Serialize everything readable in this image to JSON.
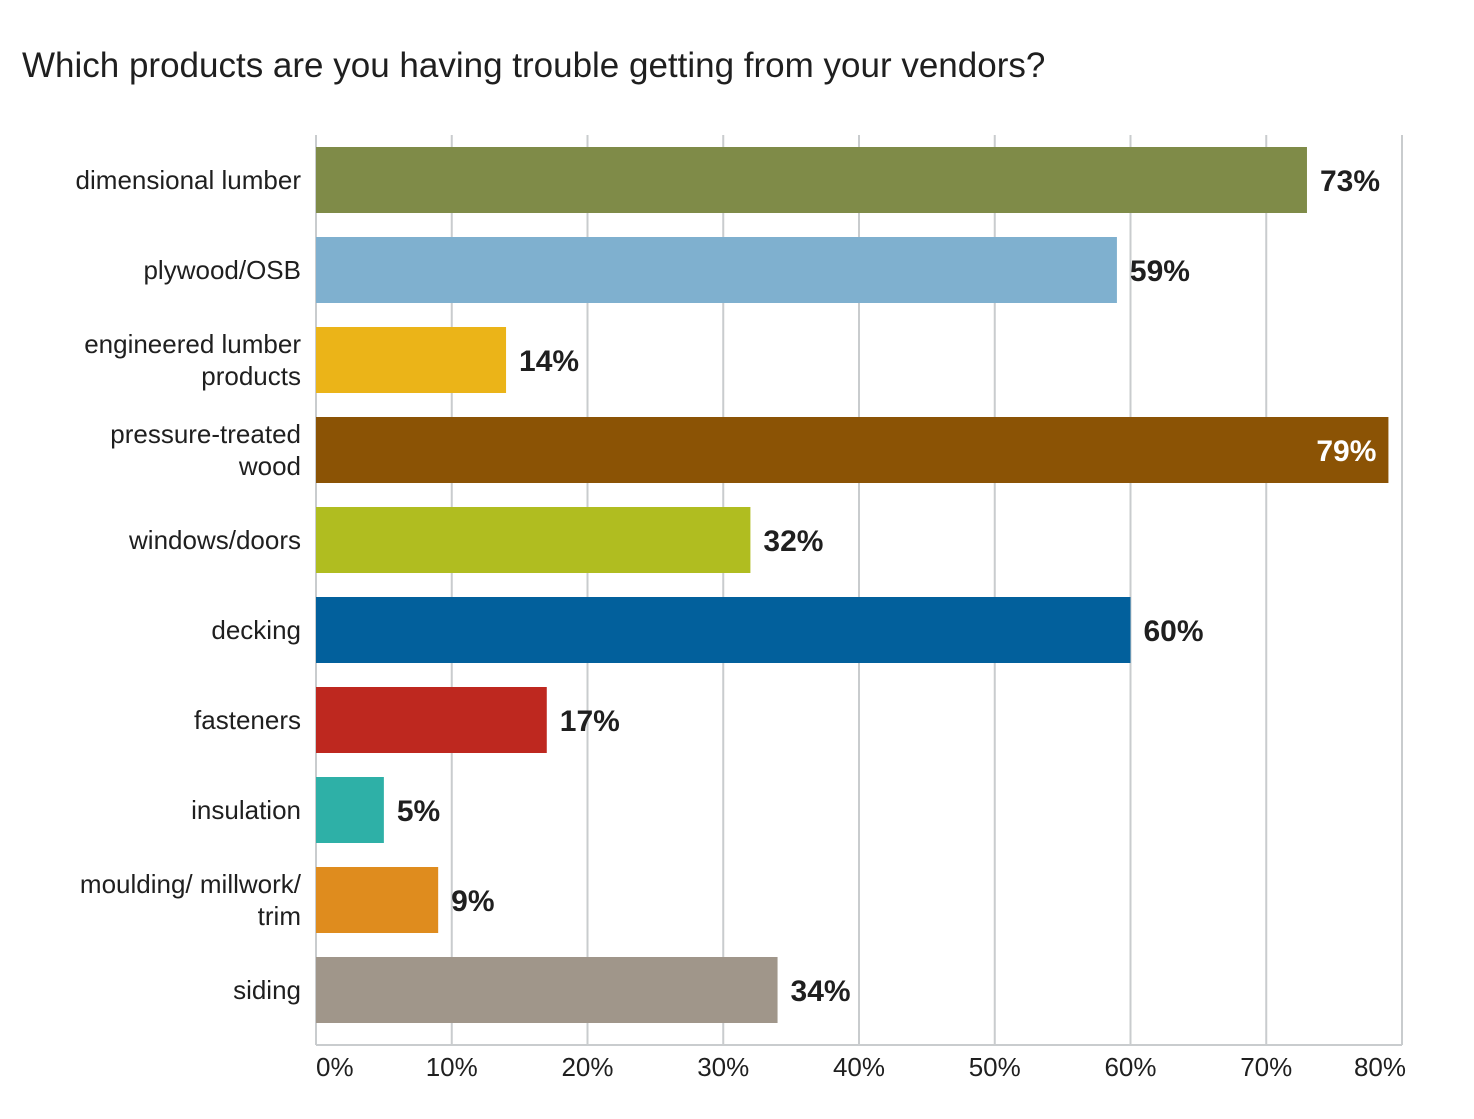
{
  "chart_data": {
    "type": "bar",
    "orientation": "horizontal",
    "title": "Which products are you having trouble getting from your vendors?",
    "categories": [
      [
        "dimensional lumber"
      ],
      [
        "plywood/OSB"
      ],
      [
        "engineered lumber",
        "products"
      ],
      [
        "pressure-treated",
        "wood"
      ],
      [
        "windows/doors"
      ],
      [
        "decking"
      ],
      [
        "fasteners"
      ],
      [
        "insulation"
      ],
      [
        "moulding/ millwork/",
        "trim"
      ],
      [
        "siding"
      ]
    ],
    "values": [
      73,
      59,
      14,
      79,
      32,
      60,
      17,
      5,
      9,
      34
    ],
    "value_labels": [
      "73%",
      "59%",
      "14%",
      "79%",
      "32%",
      "60%",
      "17%",
      "5%",
      "9%",
      "34%"
    ],
    "colors": [
      "#7f8b48",
      "#7fb0cf",
      "#ebb418",
      "#8b5305",
      "#b0bd20",
      "#02609c",
      "#be281f",
      "#2eb0a7",
      "#df8c1e",
      "#a0968a"
    ],
    "xlim": [
      0,
      80
    ],
    "xticks": [
      "0%",
      "10%",
      "20%",
      "30%",
      "40%",
      "50%",
      "60%",
      "70%",
      "80%"
    ],
    "grid": true,
    "grid_color": "#c9ccce"
  }
}
